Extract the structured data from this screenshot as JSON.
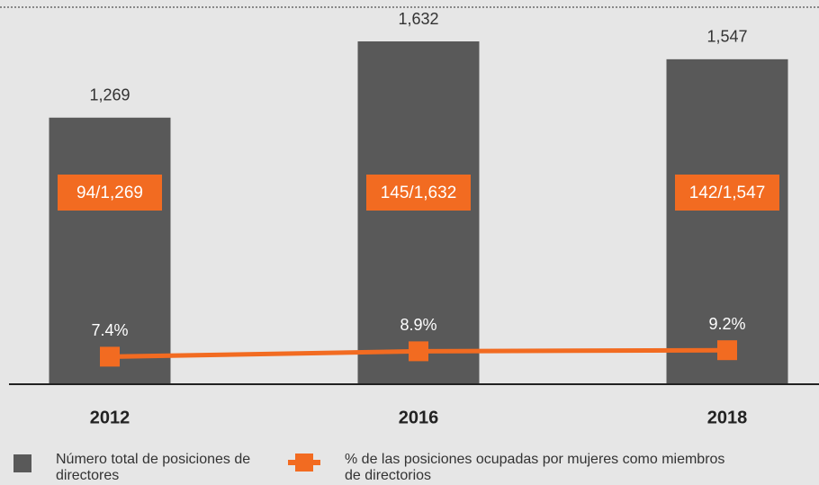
{
  "chart_data": {
    "type": "bar",
    "categories": [
      "2012",
      "2016",
      "2018"
    ],
    "series": [
      {
        "name": "Número total de posiciones de directores",
        "color": "#595959",
        "values": [
          1269,
          1632,
          1547
        ],
        "value_labels": [
          "1,269",
          "1,632",
          "1,547"
        ]
      },
      {
        "name": "% de las posiciones ocupadas por mujeres como miembros de directorios",
        "type": "line",
        "axis": "y2",
        "color": "#f26b21",
        "values": [
          7.4,
          8.9,
          9.2
        ],
        "value_labels": [
          "7.4%",
          "8.9%",
          "9.2%"
        ]
      }
    ],
    "annotations": [
      "94/1,269",
      "145/1,632",
      "142/1,547"
    ]
  }
}
